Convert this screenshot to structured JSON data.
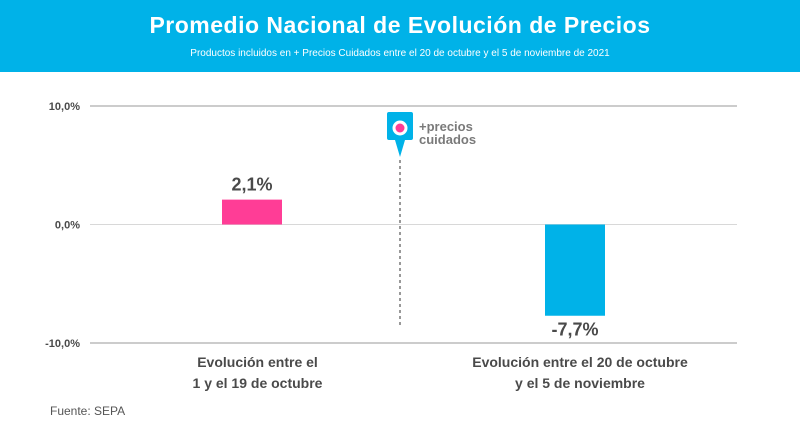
{
  "header": {
    "title": "Promedio Nacional de Evolución de Precios",
    "subtitle": "Productos incluidos en + Precios Cuidados entre el 20 de octubre y el 5 de noviembre de 2021"
  },
  "logo": {
    "line1": "+precios",
    "line2": "cuidados",
    "icon": "precios-cuidados-pin-icon"
  },
  "source": "Fuente: SEPA",
  "colors": {
    "header_bg": "#00b2e8",
    "bar1": "#ff3d96",
    "bar2": "#00b2e8",
    "text": "#4a4a4a"
  },
  "chart_data": {
    "type": "bar",
    "title": "Promedio Nacional de Evolución de Precios",
    "categories": [
      [
        "Evolución entre el",
        "1 y el 19 de octubre"
      ],
      [
        "Evolución entre el 20 de octubre",
        "y el 5 de noviembre"
      ]
    ],
    "values": [
      2.1,
      -7.7
    ],
    "data_labels": [
      "2,1%",
      "-7,7%"
    ],
    "yticks": [
      10,
      0,
      -10
    ],
    "ytick_labels": [
      "10,0%",
      "0,0%",
      "-10,0%"
    ],
    "ylim": [
      -10,
      10
    ],
    "xlabel": "",
    "ylabel": "",
    "grid": true,
    "annotation": "Inicio +Precios Cuidados (línea punteada entre ambas barras)"
  }
}
